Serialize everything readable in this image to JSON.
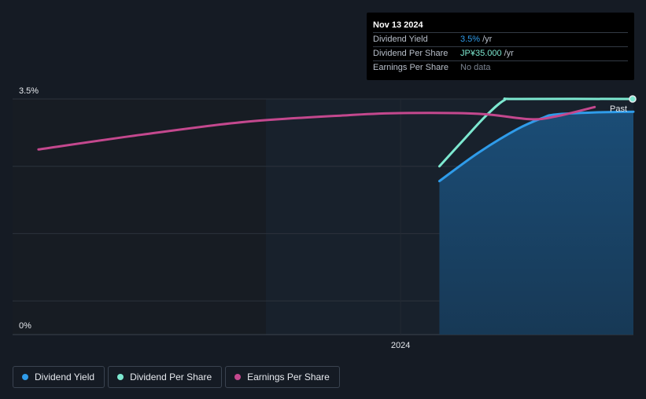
{
  "chart_data": {
    "type": "line",
    "title": "",
    "xlabel": "",
    "ylabel": "",
    "x_ticks": [
      "2024"
    ],
    "y_ticks": [
      "3.5%",
      "0%"
    ],
    "ylim": [
      0,
      3.5
    ],
    "x_range": [
      2022.5,
      2024.9
    ],
    "past_label": "Past",
    "grid": true,
    "legend_position": "bottom-left",
    "series": [
      {
        "name": "Dividend Yield",
        "key": "dividend_yield",
        "color": "#2f9cea",
        "area": true,
        "points": [
          [
            2024.15,
            2.28
          ],
          [
            2024.3,
            2.7
          ],
          [
            2024.45,
            3.05
          ],
          [
            2024.55,
            3.22
          ],
          [
            2024.6,
            3.27
          ],
          [
            2024.75,
            3.3
          ],
          [
            2024.9,
            3.31
          ]
        ]
      },
      {
        "name": "Dividend Per Share",
        "key": "dividend_per_share",
        "color": "#7de8d0",
        "area": false,
        "points": [
          [
            2024.15,
            2.5
          ],
          [
            2024.25,
            2.92
          ],
          [
            2024.33,
            3.25
          ],
          [
            2024.4,
            3.48
          ],
          [
            2024.45,
            3.5
          ],
          [
            2024.9,
            3.5
          ]
        ]
      },
      {
        "name": "Earnings Per Share",
        "key": "earnings_per_share",
        "color": "#c4488e",
        "area": false,
        "points": [
          [
            2022.6,
            2.75
          ],
          [
            2023.0,
            2.97
          ],
          [
            2023.4,
            3.16
          ],
          [
            2023.8,
            3.26
          ],
          [
            2024.0,
            3.29
          ],
          [
            2024.3,
            3.28
          ],
          [
            2024.5,
            3.2
          ],
          [
            2024.6,
            3.24
          ],
          [
            2024.75,
            3.38
          ]
        ]
      }
    ]
  },
  "tooltip": {
    "date": "Nov 13 2024",
    "rows": [
      {
        "label": "Dividend Yield",
        "value": "3.5%",
        "unit": "/yr"
      },
      {
        "label": "Dividend Per Share",
        "value": "JP¥35.000",
        "unit": "/yr"
      },
      {
        "label": "Earnings Per Share",
        "value": "No data",
        "unit": ""
      }
    ]
  },
  "legend": [
    {
      "label": "Dividend Yield",
      "color": "#2f9cea"
    },
    {
      "label": "Dividend Per Share",
      "color": "#7de8d0"
    },
    {
      "label": "Earnings Per Share",
      "color": "#c4488e"
    }
  ]
}
